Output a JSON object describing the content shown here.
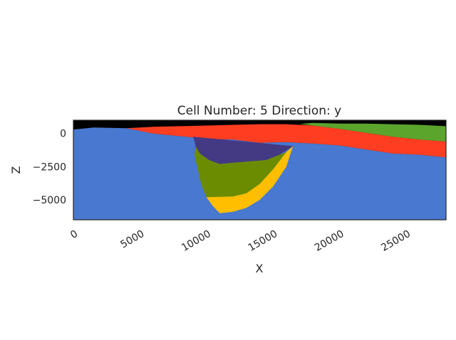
{
  "chart_data": {
    "type": "heatmap",
    "title": "Cell Number: 5 Direction: y",
    "xlabel": "X",
    "ylabel": "Z",
    "xlim": [
      0,
      28000
    ],
    "ylim": [
      -6500,
      1000
    ],
    "xticks": [
      0,
      5000,
      10000,
      15000,
      20000,
      25000
    ],
    "xtick_labels": [
      "0",
      "5000",
      "10000",
      "15000",
      "20000",
      "25000"
    ],
    "yticks": [
      0,
      -2500,
      -5000
    ],
    "ytick_labels": [
      "0",
      "−2500",
      "−5000"
    ],
    "grid": false,
    "legend": "none",
    "units": [
      {
        "name": "air",
        "color": "#000000",
        "polygon": [
          [
            0,
            1000
          ],
          [
            28000,
            1000
          ],
          [
            28000,
            -6500
          ],
          [
            0,
            -6500
          ]
        ]
      },
      {
        "name": "basement",
        "color": "#4878cf",
        "polygon": [
          [
            0,
            300
          ],
          [
            1500,
            450
          ],
          [
            4000,
            400
          ],
          [
            6000,
            0
          ],
          [
            8000,
            -200
          ],
          [
            10000,
            -400
          ],
          [
            12000,
            -450
          ],
          [
            14000,
            -700
          ],
          [
            16000,
            -650
          ],
          [
            18000,
            -750
          ],
          [
            20000,
            -900
          ],
          [
            22000,
            -1200
          ],
          [
            24000,
            -1500
          ],
          [
            26000,
            -1600
          ],
          [
            28000,
            -1800
          ],
          [
            28000,
            -6500
          ],
          [
            0,
            -6500
          ]
        ]
      },
      {
        "name": "red-layer",
        "color": "#ff3d21",
        "polygon": [
          [
            4000,
            400
          ],
          [
            6000,
            500
          ],
          [
            8000,
            550
          ],
          [
            10000,
            600
          ],
          [
            12000,
            650
          ],
          [
            14000,
            700
          ],
          [
            16000,
            700
          ],
          [
            18000,
            600
          ],
          [
            20000,
            350
          ],
          [
            22000,
            50
          ],
          [
            24000,
            -250
          ],
          [
            26000,
            -450
          ],
          [
            28000,
            -600
          ],
          [
            28000,
            -1800
          ],
          [
            26000,
            -1600
          ],
          [
            24000,
            -1500
          ],
          [
            22000,
            -1200
          ],
          [
            20000,
            -900
          ],
          [
            18000,
            -750
          ],
          [
            16000,
            -650
          ],
          [
            14000,
            -700
          ],
          [
            12000,
            -450
          ],
          [
            10000,
            -400
          ],
          [
            8000,
            -200
          ],
          [
            6000,
            0
          ]
        ]
      },
      {
        "name": "green-layer",
        "color": "#5ba52d",
        "polygon": [
          [
            18000,
            800
          ],
          [
            20000,
            750
          ],
          [
            22000,
            750
          ],
          [
            24000,
            700
          ],
          [
            26000,
            650
          ],
          [
            28000,
            550
          ],
          [
            28000,
            -600
          ],
          [
            26000,
            -450
          ],
          [
            24000,
            -250
          ],
          [
            22000,
            50
          ],
          [
            20000,
            350
          ],
          [
            18000,
            600
          ],
          [
            17000,
            720
          ]
        ]
      },
      {
        "name": "purple-fill",
        "color": "#443983",
        "polygon": [
          [
            9000,
            -250
          ],
          [
            16500,
            -950
          ],
          [
            15500,
            -1600
          ],
          [
            14500,
            -2000
          ],
          [
            12000,
            -2200
          ],
          [
            11000,
            -2300
          ],
          [
            10200,
            -2000
          ],
          [
            9500,
            -1500
          ],
          [
            9200,
            -1000
          ]
        ]
      },
      {
        "name": "olive-fill",
        "color": "#6b8c00",
        "polygon": [
          [
            9200,
            -1000
          ],
          [
            9500,
            -1500
          ],
          [
            10200,
            -2000
          ],
          [
            11000,
            -2300
          ],
          [
            12000,
            -2200
          ],
          [
            14500,
            -2000
          ],
          [
            15500,
            -1600
          ],
          [
            16000,
            -1400
          ],
          [
            15000,
            -2700
          ],
          [
            14000,
            -3800
          ],
          [
            13000,
            -4500
          ],
          [
            12000,
            -4750
          ],
          [
            11000,
            -4800
          ],
          [
            10000,
            -4800
          ],
          [
            9600,
            -3800
          ],
          [
            9300,
            -2500
          ],
          [
            9100,
            -1600
          ]
        ]
      },
      {
        "name": "yellow-fill",
        "color": "#ffbe00",
        "polygon": [
          [
            16500,
            -950
          ],
          [
            16000,
            -1400
          ],
          [
            15000,
            -2700
          ],
          [
            14000,
            -3800
          ],
          [
            13000,
            -4500
          ],
          [
            12000,
            -4750
          ],
          [
            10000,
            -4800
          ],
          [
            10500,
            -5500
          ],
          [
            11000,
            -6000
          ],
          [
            12000,
            -5900
          ],
          [
            13000,
            -5600
          ],
          [
            14000,
            -5000
          ],
          [
            15000,
            -4000
          ],
          [
            16000,
            -2500
          ]
        ]
      }
    ]
  }
}
